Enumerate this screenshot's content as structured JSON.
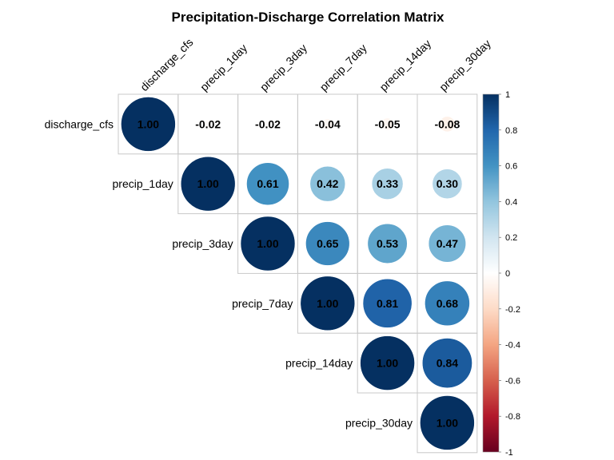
{
  "chart_data": {
    "type": "heatmap",
    "subtype": "correlation-matrix-upper-circle",
    "title": "Precipitation-Discharge Correlation Matrix",
    "variables": [
      "discharge_cfs",
      "precip_1day",
      "precip_3day",
      "precip_7day",
      "precip_14day",
      "precip_30day"
    ],
    "matrix": [
      [
        1.0,
        -0.02,
        -0.02,
        -0.04,
        -0.05,
        -0.08
      ],
      [
        null,
        1.0,
        0.61,
        0.42,
        0.33,
        0.3
      ],
      [
        null,
        null,
        1.0,
        0.65,
        0.53,
        0.47
      ],
      [
        null,
        null,
        null,
        1.0,
        0.81,
        0.68
      ],
      [
        null,
        null,
        null,
        null,
        1.0,
        0.84
      ],
      [
        null,
        null,
        null,
        null,
        null,
        1.0
      ]
    ],
    "value_labels": [
      [
        "1.00",
        "-0.02",
        "-0.02",
        "-0.04",
        "-0.05",
        "-0.08"
      ],
      [
        null,
        "1.00",
        "0.61",
        "0.42",
        "0.33",
        "0.30"
      ],
      [
        null,
        null,
        "1.00",
        "0.65",
        "0.53",
        "0.47"
      ],
      [
        null,
        null,
        null,
        "1.00",
        "0.81",
        "0.68"
      ],
      [
        null,
        null,
        null,
        null,
        "1.00",
        "0.84"
      ],
      [
        null,
        null,
        null,
        null,
        null,
        "1.00"
      ]
    ],
    "color_scale": {
      "range": [
        -1,
        1
      ],
      "ticks": [
        "1",
        "0.8",
        "0.6",
        "0.4",
        "0.2",
        "0",
        "-0.2",
        "-0.4",
        "-0.6",
        "-0.8",
        "-1"
      ],
      "palette": [
        "#67001F",
        "#B2182B",
        "#D6604D",
        "#F4A582",
        "#FDDBC7",
        "#FFFFFF",
        "#D1E5F0",
        "#92C5DE",
        "#4393C3",
        "#2166AC",
        "#053061"
      ]
    },
    "legend_position": "right",
    "grid": true
  }
}
